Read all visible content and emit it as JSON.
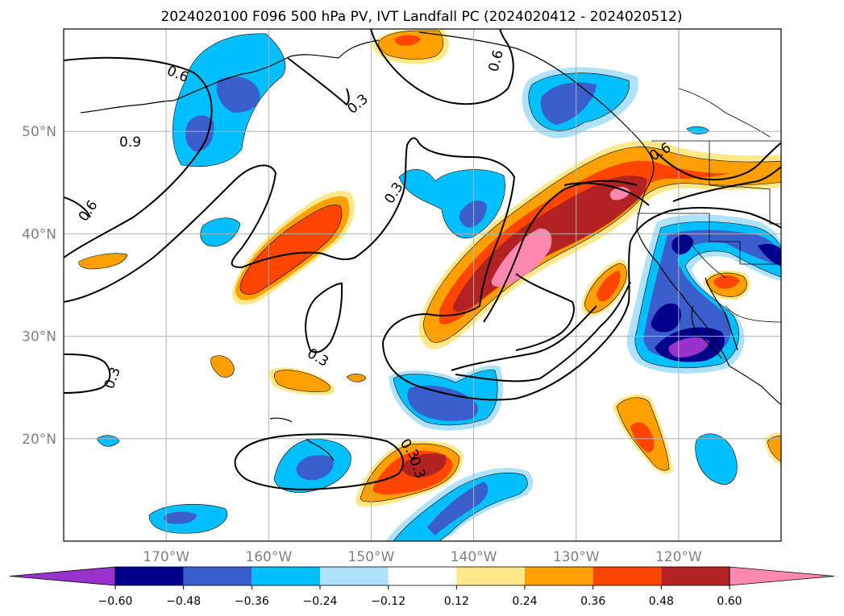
{
  "title": "2024020100 F096 500 hPa PV, IVT Landfall PC (2024020412 - 2024020512)",
  "map": {
    "lon_range": [
      -180,
      -110
    ],
    "lat_range": [
      10,
      60
    ],
    "lon_ticks": [
      {
        "lon": -170,
        "label": "170°W"
      },
      {
        "lon": -160,
        "label": "160°W"
      },
      {
        "lon": -150,
        "label": "150°W"
      },
      {
        "lon": -140,
        "label": "140°W"
      },
      {
        "lon": -130,
        "label": "130°W"
      },
      {
        "lon": -120,
        "label": "120°W"
      }
    ],
    "lat_ticks": [
      {
        "lat": 50,
        "label": "50°N"
      },
      {
        "lat": 40,
        "label": "40°N"
      },
      {
        "lat": 30,
        "label": "30°N"
      },
      {
        "lat": 20,
        "label": "20°N"
      }
    ],
    "gridlines": true,
    "contour_labels": [
      "0.6",
      "0.9",
      "0.3",
      "0.6",
      "0.3",
      "0.3",
      "0.3",
      "0.6",
      "0.3",
      "0.3",
      "0.6"
    ]
  },
  "colorbar": {
    "ticks": [
      "−0.60",
      "−0.48",
      "−0.36",
      "−0.24",
      "−0.12",
      "0.12",
      "0.24",
      "0.36",
      "0.48",
      "0.60"
    ],
    "colors": [
      "#9932CC",
      "#00008B",
      "#3A5FCD",
      "#00BFFF",
      "#ADE2FA",
      "#FFFFFF",
      "#FFE88A",
      "#FFA000",
      "#FF4500",
      "#B22222",
      "#FF88B0"
    ]
  }
}
